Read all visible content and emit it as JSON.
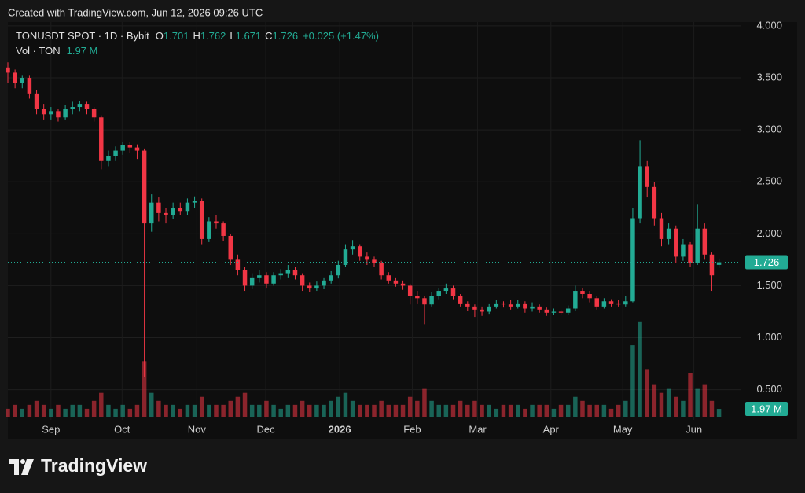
{
  "header": {
    "created": "Created with TradingView.com, Jun 12, 2026 09:26 UTC"
  },
  "legend": {
    "symbol": "TONUSDT SPOT · 1D · Bybit",
    "fields": [
      {
        "key": "O",
        "value": "1.701"
      },
      {
        "key": "H",
        "value": "1.762"
      },
      {
        "key": "L",
        "value": "1.671"
      },
      {
        "key": "C",
        "value": "1.726"
      }
    ],
    "change": "+0.025 (+1.47%)",
    "volume_title": "Vol · TON",
    "volume_value": "1.97 M"
  },
  "footer": {
    "brand": "TradingView"
  },
  "chart_data": {
    "type": "candlestick",
    "up_color": "#22ab94",
    "down_color": "#f23645",
    "ylim": [
      0.24,
      4.06
    ],
    "yticks": [
      {
        "value": 0.5,
        "label": "0.500"
      },
      {
        "value": 1,
        "label": "1.000"
      },
      {
        "value": 1.5,
        "label": "1.500"
      },
      {
        "value": 2,
        "label": "2.000"
      },
      {
        "value": 2.5,
        "label": "2.500"
      },
      {
        "value": 3,
        "label": "3.000"
      },
      {
        "value": 3.5,
        "label": "3.500"
      },
      {
        "value": 4,
        "label": "4.000"
      }
    ],
    "grid": true,
    "xlim": [
      0,
      102
    ],
    "xticks": [
      {
        "value": 6,
        "label": "Sep"
      },
      {
        "value": 15.9,
        "label": "Oct"
      },
      {
        "value": 26.3,
        "label": "Nov"
      },
      {
        "value": 35.9,
        "label": "Dec"
      },
      {
        "value": 46.2,
        "label": "2026"
      },
      {
        "value": 56.3,
        "label": "Feb"
      },
      {
        "value": 65.4,
        "label": "Mar"
      },
      {
        "value": 75.6,
        "label": "Apr"
      },
      {
        "value": 85.6,
        "label": "May"
      },
      {
        "value": 95.5,
        "label": "Jun"
      }
    ],
    "volume_lim": [
      0,
      100
    ],
    "last_price_label": "1.726",
    "last_volume_label": "1.97 M",
    "candles": [
      [
        3.6,
        3.65,
        3.45,
        3.55
      ],
      [
        3.55,
        3.58,
        3.4,
        3.45
      ],
      [
        3.45,
        3.52,
        3.4,
        3.5
      ],
      [
        3.5,
        3.52,
        3.3,
        3.35
      ],
      [
        3.35,
        3.38,
        3.15,
        3.2
      ],
      [
        3.2,
        3.25,
        3.1,
        3.15
      ],
      [
        3.15,
        3.22,
        3.1,
        3.18
      ],
      [
        3.18,
        3.2,
        3.08,
        3.12
      ],
      [
        3.12,
        3.24,
        3.1,
        3.2
      ],
      [
        3.2,
        3.27,
        3.15,
        3.22
      ],
      [
        3.22,
        3.28,
        3.18,
        3.25
      ],
      [
        3.25,
        3.27,
        3.15,
        3.2
      ],
      [
        3.2,
        3.22,
        3.08,
        3.12
      ],
      [
        3.12,
        3.14,
        2.62,
        2.7
      ],
      [
        2.7,
        2.8,
        2.65,
        2.75
      ],
      [
        2.75,
        2.84,
        2.7,
        2.8
      ],
      [
        2.8,
        2.88,
        2.76,
        2.85
      ],
      [
        2.85,
        2.88,
        2.78,
        2.83
      ],
      [
        2.83,
        2.86,
        2.72,
        2.8
      ],
      [
        2.8,
        2.82,
        0.62,
        2.1
      ],
      [
        2.1,
        2.38,
        2.02,
        2.3
      ],
      [
        2.3,
        2.35,
        2.12,
        2.2
      ],
      [
        2.2,
        2.25,
        2.1,
        2.18
      ],
      [
        2.18,
        2.3,
        2.14,
        2.25
      ],
      [
        2.25,
        2.3,
        2.18,
        2.22
      ],
      [
        2.22,
        2.34,
        2.18,
        2.3
      ],
      [
        2.3,
        2.36,
        2.25,
        2.32
      ],
      [
        2.32,
        2.34,
        1.9,
        1.95
      ],
      [
        1.95,
        2.16,
        1.92,
        2.12
      ],
      [
        2.12,
        2.18,
        2.05,
        2.1
      ],
      [
        2.1,
        2.12,
        1.93,
        1.98
      ],
      [
        1.98,
        2,
        1.7,
        1.75
      ],
      [
        1.75,
        1.8,
        1.6,
        1.65
      ],
      [
        1.65,
        1.68,
        1.45,
        1.5
      ],
      [
        1.5,
        1.62,
        1.47,
        1.58
      ],
      [
        1.58,
        1.65,
        1.53,
        1.6
      ],
      [
        1.6,
        1.63,
        1.48,
        1.52
      ],
      [
        1.52,
        1.63,
        1.5,
        1.6
      ],
      [
        1.6,
        1.66,
        1.56,
        1.62
      ],
      [
        1.62,
        1.7,
        1.58,
        1.65
      ],
      [
        1.65,
        1.68,
        1.56,
        1.6
      ],
      [
        1.6,
        1.62,
        1.45,
        1.5
      ],
      [
        1.5,
        1.53,
        1.44,
        1.48
      ],
      [
        1.48,
        1.54,
        1.45,
        1.5
      ],
      [
        1.5,
        1.58,
        1.47,
        1.55
      ],
      [
        1.55,
        1.64,
        1.52,
        1.6
      ],
      [
        1.6,
        1.74,
        1.57,
        1.7
      ],
      [
        1.7,
        1.9,
        1.68,
        1.85
      ],
      [
        1.85,
        1.94,
        1.8,
        1.88
      ],
      [
        1.88,
        1.9,
        1.74,
        1.78
      ],
      [
        1.78,
        1.82,
        1.7,
        1.75
      ],
      [
        1.75,
        1.78,
        1.68,
        1.72
      ],
      [
        1.72,
        1.74,
        1.56,
        1.6
      ],
      [
        1.6,
        1.63,
        1.52,
        1.55
      ],
      [
        1.55,
        1.58,
        1.49,
        1.52
      ],
      [
        1.52,
        1.55,
        1.46,
        1.5
      ],
      [
        1.5,
        1.52,
        1.32,
        1.4
      ],
      [
        1.4,
        1.45,
        1.33,
        1.38
      ],
      [
        1.38,
        1.4,
        1.13,
        1.32
      ],
      [
        1.32,
        1.44,
        1.3,
        1.4
      ],
      [
        1.4,
        1.48,
        1.37,
        1.45
      ],
      [
        1.45,
        1.52,
        1.42,
        1.48
      ],
      [
        1.48,
        1.5,
        1.37,
        1.4
      ],
      [
        1.4,
        1.42,
        1.3,
        1.33
      ],
      [
        1.33,
        1.35,
        1.26,
        1.3
      ],
      [
        1.3,
        1.32,
        1.2,
        1.27
      ],
      [
        1.27,
        1.3,
        1.21,
        1.25
      ],
      [
        1.25,
        1.33,
        1.23,
        1.3
      ],
      [
        1.3,
        1.36,
        1.28,
        1.33
      ],
      [
        1.33,
        1.35,
        1.29,
        1.32
      ],
      [
        1.32,
        1.36,
        1.27,
        1.3
      ],
      [
        1.3,
        1.36,
        1.28,
        1.33
      ],
      [
        1.33,
        1.35,
        1.24,
        1.28
      ],
      [
        1.28,
        1.34,
        1.25,
        1.3
      ],
      [
        1.3,
        1.32,
        1.24,
        1.27
      ],
      [
        1.27,
        1.29,
        1.21,
        1.24
      ],
      [
        1.24,
        1.28,
        1.22,
        1.25
      ],
      [
        1.25,
        1.27,
        1.22,
        1.24
      ],
      [
        1.24,
        1.31,
        1.22,
        1.28
      ],
      [
        1.28,
        1.5,
        1.26,
        1.45
      ],
      [
        1.45,
        1.48,
        1.38,
        1.42
      ],
      [
        1.42,
        1.45,
        1.34,
        1.38
      ],
      [
        1.38,
        1.4,
        1.27,
        1.3
      ],
      [
        1.3,
        1.38,
        1.28,
        1.35
      ],
      [
        1.35,
        1.37,
        1.3,
        1.33
      ],
      [
        1.33,
        1.36,
        1.3,
        1.32
      ],
      [
        1.32,
        1.4,
        1.3,
        1.35
      ],
      [
        1.35,
        2.25,
        1.34,
        2.15
      ],
      [
        2.15,
        2.9,
        2.1,
        2.65
      ],
      [
        2.65,
        2.7,
        2.35,
        2.45
      ],
      [
        2.45,
        2.5,
        2.08,
        2.15
      ],
      [
        2.15,
        2.2,
        1.88,
        1.95
      ],
      [
        1.95,
        2.1,
        1.9,
        2.05
      ],
      [
        2.05,
        2.08,
        1.72,
        1.78
      ],
      [
        1.78,
        1.95,
        1.74,
        1.9
      ],
      [
        1.9,
        1.92,
        1.68,
        1.72
      ],
      [
        1.72,
        2.28,
        1.7,
        2.05
      ],
      [
        2.05,
        2.1,
        1.75,
        1.8
      ],
      [
        1.8,
        1.82,
        1.45,
        1.6
      ],
      [
        1.701,
        1.762,
        1.671,
        1.726
      ]
    ],
    "volumes": [
      2,
      3,
      2,
      3,
      4,
      3,
      2,
      3,
      2,
      3,
      3,
      2,
      4,
      6,
      3,
      2,
      3,
      2,
      3,
      14,
      6,
      4,
      3,
      3,
      2,
      3,
      3,
      5,
      3,
      3,
      3,
      4,
      5,
      6,
      3,
      3,
      4,
      3,
      2,
      3,
      3,
      4,
      3,
      3,
      3,
      4,
      5,
      6,
      4,
      3,
      3,
      3,
      4,
      3,
      3,
      3,
      5,
      4,
      7,
      4,
      3,
      3,
      3,
      4,
      3,
      4,
      3,
      3,
      2,
      3,
      3,
      3,
      2,
      3,
      3,
      3,
      2,
      3,
      3,
      5,
      4,
      3,
      3,
      3,
      2,
      3,
      4,
      18,
      24,
      12,
      8,
      6,
      7,
      5,
      4,
      11,
      7,
      8,
      4,
      1.97
    ]
  }
}
